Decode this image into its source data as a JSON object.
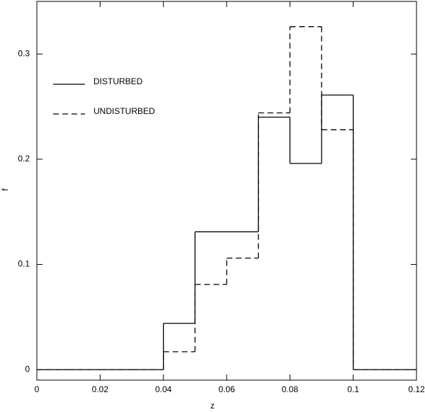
{
  "chart_data": {
    "type": "step-histogram",
    "xlabel": "z",
    "ylabel": "f",
    "bins": [
      0,
      0.01,
      0.02,
      0.03,
      0.04,
      0.05,
      0.06,
      0.07,
      0.08,
      0.09,
      0.1,
      0.11,
      0.12
    ],
    "series": [
      {
        "name": "DISTURBED",
        "color": "#000000",
        "linestyle": "solid",
        "values": [
          0,
          0,
          0,
          0,
          0.044,
          0.131,
          0.131,
          0.24,
          0.196,
          0.261,
          0,
          0
        ]
      },
      {
        "name": "UNDISTURBED",
        "color": "#000000",
        "linestyle": "dashed",
        "values": [
          0,
          0,
          0,
          0,
          0.017,
          0.081,
          0.106,
          0.244,
          0.326,
          0.228,
          0,
          0
        ]
      }
    ],
    "xlim": [
      0,
      0.12
    ],
    "ylim": [
      -0.01,
      0.35
    ],
    "xticks": [
      0,
      0.02,
      0.04,
      0.06,
      0.08,
      0.1,
      0.12
    ],
    "yticks": [
      0,
      0.1,
      0.2,
      0.3
    ],
    "legend": "upper-left",
    "grid": false
  }
}
